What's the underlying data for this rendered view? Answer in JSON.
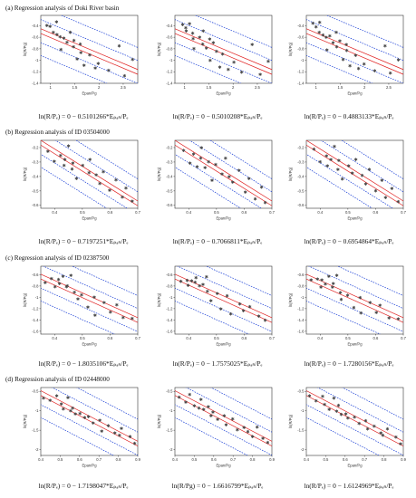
{
  "sections": [
    {
      "label": "(a) Regression analysis of Doki River basin",
      "xlabel": "Epan/Pg",
      "ylabel": "ln(R/Pg)",
      "xticks": [
        "1",
        "1.5",
        "2",
        "2.5"
      ],
      "xlim": [
        0.8,
        2.8
      ],
      "panels": [
        {
          "equation": "ln(R/Pₑ) = 0 − 0.5101266*Eₚₐₙ/Pₑ",
          "yticks": [
            "-0.4",
            "-0.6",
            "-0.8",
            "-1",
            "-1.2",
            "-1.4"
          ],
          "ylim": [
            -1.4,
            -0.22
          ],
          "slope": -0.5101266,
          "intercept": 0
        },
        {
          "equation": "ln(R/Pₑ) = 0 − 0.5010208*Eₚₐₙ/Pₑ",
          "yticks": [
            "-0.4",
            "-0.6",
            "-0.8",
            "-1",
            "-1.2",
            "-1.4"
          ],
          "ylim": [
            -1.4,
            -0.22
          ],
          "slope": -0.5010208,
          "intercept": 0
        },
        {
          "equation": "ln(R/Pₑ) = 0 − 0.4883133*Eₚₐₙ/Pₑ",
          "yticks": [
            "-0.4",
            "-0.6",
            "-0.8",
            "-1",
            "-1.2",
            "-1.4"
          ],
          "ylim": [
            -1.4,
            -0.22
          ],
          "slope": -0.4883133,
          "intercept": 0
        }
      ]
    },
    {
      "label": "(b) Regression analysis of ID 03504000",
      "xlabel": "Epan/Pg",
      "ylabel": "ln(R/Pg)",
      "xticks": [
        "0.4",
        "0.5",
        "0.6",
        "0.7"
      ],
      "xlim": [
        0.35,
        0.7
      ],
      "panels": [
        {
          "equation": "ln(R/Pₑ) = 0 − 0.7197251*Eₚₐₙ/Pₑ",
          "yticks": [
            "-0.2",
            "-0.3",
            "-0.4",
            "-0.5",
            "-0.6"
          ],
          "ylim": [
            -0.62,
            -0.15
          ],
          "slope": -0.7197251,
          "intercept": 0
        },
        {
          "equation": "ln(R/Pₑ) = 0 − 0.7066811*Eₚₐₙ/Pₑ",
          "yticks": [
            "-0.2",
            "-0.3",
            "-0.4",
            "-0.5",
            "-0.6"
          ],
          "ylim": [
            -0.62,
            -0.15
          ],
          "slope": -0.7066811,
          "intercept": 0
        },
        {
          "equation": "ln(R/Pₑ) = 0 − 0.6954864*Eₚₐₙ/Pₑ",
          "yticks": [
            "-0.2",
            "-0.3",
            "-0.4",
            "-0.5",
            "-0.6"
          ],
          "ylim": [
            -0.62,
            -0.15
          ],
          "slope": -0.6954864,
          "intercept": 0
        }
      ]
    },
    {
      "label": "(c) Regression analysis of ID 02387500",
      "xlabel": "Epan/Pg",
      "ylabel": "ln(R/Pg)",
      "xticks": [
        "0.4",
        "0.5",
        "0.6",
        "0.7"
      ],
      "xlim": [
        0.35,
        0.7
      ],
      "panels": [
        {
          "equation": "ln(R/Pₑ) = 0 − 1.8035106*Eₚₐₙ/Pₑ",
          "yticks": [
            "-0.6",
            "-0.8",
            "-1",
            "-1.2",
            "-1.4",
            "-1.6"
          ],
          "ylim": [
            -1.65,
            -0.45
          ],
          "slope": -1.8035106,
          "intercept": 0
        },
        {
          "equation": "ln(R/Pₑ) = 0 − 1.7575025*Eₚₐₙ/Pₑ",
          "yticks": [
            "-0.6",
            "-0.8",
            "-1",
            "-1.2",
            "-1.4",
            "-1.6"
          ],
          "ylim": [
            -1.65,
            -0.45
          ],
          "slope": -1.7575025,
          "intercept": 0
        },
        {
          "equation": "ln(R/Pₑ) = 0 − 1.7280156*Eₚₐₙ/Pₑ",
          "yticks": [
            "-0.6",
            "-0.8",
            "-1",
            "-1.2",
            "-1.4",
            "-1.6"
          ],
          "ylim": [
            -1.65,
            -0.45
          ],
          "slope": -1.7280156,
          "intercept": 0
        }
      ]
    },
    {
      "label": "(d) Regression analysis of ID 02448000",
      "xlabel": "Epan/Pg",
      "ylabel": "ln(R/Pg)",
      "xticks": [
        "0.4",
        "0.5",
        "0.6",
        "0.7",
        "0.8",
        "0.9"
      ],
      "xlim": [
        0.4,
        0.9
      ],
      "panels": [
        {
          "equation": "ln(R/Pₑ) = 0 − 1.7198047*Eₚₐₙ/Pₑ",
          "yticks": [
            "-0.5",
            "-1",
            "-1.5",
            "-2"
          ],
          "ylim": [
            -2.15,
            -0.4
          ],
          "slope": -1.7198047,
          "intercept": 0
        },
        {
          "equation": "ln(R/Pg) = 0 − 1.6616799*Eₚₐₙ/Pₑ",
          "yticks": [
            "-0.5",
            "-1",
            "-1.5",
            "-2"
          ],
          "ylim": [
            -2.15,
            -0.4
          ],
          "slope": -1.6616799,
          "intercept": 0
        },
        {
          "equation": "ln(R/Pₑ) = 0 − 1.6124969*Eₚₐₙ/Pₑ",
          "yticks": [
            "-0.5",
            "-1",
            "-1.5",
            "-2"
          ],
          "ylim": [
            -2.15,
            -0.4
          ],
          "slope": -1.6124969,
          "intercept": 0
        }
      ]
    }
  ],
  "colors": {
    "fit": "#e02020",
    "band": "#1a3fd6",
    "points": "#444444",
    "axis": "#333333"
  },
  "chart_data": [
    {
      "type": "scatter",
      "title": "(a) Regression analysis of Doki River basin",
      "xlabel": "Epan/Pg",
      "ylabel": "ln(R/Pg)",
      "xlim": [
        0.8,
        2.8
      ],
      "ylim": [
        -1.4,
        -0.22
      ],
      "points": [
        [
          0.95,
          -0.38
        ],
        [
          1.0,
          -0.42
        ],
        [
          1.05,
          -0.5
        ],
        [
          1.1,
          -0.35
        ],
        [
          1.15,
          -0.55
        ],
        [
          1.2,
          -0.62
        ],
        [
          1.2,
          -0.82
        ],
        [
          1.3,
          -0.6
        ],
        [
          1.35,
          -0.7
        ],
        [
          1.4,
          -0.5
        ],
        [
          1.45,
          -0.78
        ],
        [
          1.5,
          -0.65
        ],
        [
          1.55,
          -1.0
        ],
        [
          1.6,
          -0.72
        ],
        [
          1.65,
          -0.85
        ],
        [
          1.7,
          -1.1
        ],
        [
          1.8,
          -0.9
        ],
        [
          1.9,
          -1.15
        ],
        [
          2.0,
          -1.05
        ],
        [
          2.2,
          -1.2
        ],
        [
          2.4,
          -0.75
        ],
        [
          2.55,
          -1.25
        ],
        [
          2.7,
          -1.0
        ]
      ]
    },
    {
      "type": "scatter",
      "title": "(b) Regression analysis of ID 03504000",
      "xlabel": "Epan/Pg",
      "ylabel": "ln(R/Pg)",
      "xlim": [
        0.35,
        0.7
      ],
      "ylim": [
        -0.62,
        -0.15
      ],
      "points": [
        [
          0.38,
          -0.22
        ],
        [
          0.4,
          -0.3
        ],
        [
          0.42,
          -0.25
        ],
        [
          0.43,
          -0.33
        ],
        [
          0.44,
          -0.28
        ],
        [
          0.45,
          -0.2
        ],
        [
          0.46,
          -0.35
        ],
        [
          0.47,
          -0.3
        ],
        [
          0.48,
          -0.42
        ],
        [
          0.5,
          -0.32
        ],
        [
          0.52,
          -0.38
        ],
        [
          0.53,
          -0.28
        ],
        [
          0.55,
          -0.4
        ],
        [
          0.56,
          -0.45
        ],
        [
          0.58,
          -0.36
        ],
        [
          0.6,
          -0.5
        ],
        [
          0.62,
          -0.42
        ],
        [
          0.64,
          -0.55
        ],
        [
          0.66,
          -0.48
        ],
        [
          0.68,
          -0.58
        ]
      ]
    },
    {
      "type": "scatter",
      "title": "(c) Regression analysis of ID 02387500",
      "xlabel": "Epan/Pg",
      "ylabel": "ln(R/Pg)",
      "xlim": [
        0.35,
        0.7
      ],
      "ylim": [
        -1.65,
        -0.45
      ],
      "points": [
        [
          0.37,
          -0.72
        ],
        [
          0.39,
          -0.68
        ],
        [
          0.4,
          -0.8
        ],
        [
          0.41,
          -0.7
        ],
        [
          0.42,
          -0.75
        ],
        [
          0.43,
          -0.65
        ],
        [
          0.44,
          -0.82
        ],
        [
          0.45,
          -0.78
        ],
        [
          0.46,
          -0.62
        ],
        [
          0.47,
          -0.9
        ],
        [
          0.48,
          -1.05
        ],
        [
          0.5,
          -0.95
        ],
        [
          0.52,
          -1.2
        ],
        [
          0.54,
          -1.0
        ],
        [
          0.55,
          -1.3
        ],
        [
          0.58,
          -1.1
        ],
        [
          0.6,
          -1.25
        ],
        [
          0.62,
          -1.15
        ],
        [
          0.65,
          -1.35
        ],
        [
          0.68,
          -1.4
        ]
      ]
    },
    {
      "type": "scatter",
      "title": "(d) Regression analysis of ID 02448000",
      "xlabel": "Epan/Pg",
      "ylabel": "ln(R/Pg)",
      "xlim": [
        0.4,
        0.9
      ],
      "ylim": [
        -2.15,
        -0.4
      ],
      "points": [
        [
          0.42,
          -0.65
        ],
        [
          0.45,
          -0.75
        ],
        [
          0.48,
          -0.6
        ],
        [
          0.5,
          -0.85
        ],
        [
          0.52,
          -0.95
        ],
        [
          0.54,
          -0.7
        ],
        [
          0.55,
          -1.0
        ],
        [
          0.57,
          -0.9
        ],
        [
          0.58,
          -1.1
        ],
        [
          0.6,
          -1.05
        ],
        [
          0.62,
          -1.2
        ],
        [
          0.65,
          -1.15
        ],
        [
          0.67,
          -1.35
        ],
        [
          0.7,
          -1.25
        ],
        [
          0.72,
          -1.5
        ],
        [
          0.75,
          -1.4
        ],
        [
          0.78,
          -1.55
        ],
        [
          0.8,
          -1.65
        ],
        [
          0.82,
          -1.45
        ],
        [
          0.86,
          -1.7
        ],
        [
          0.88,
          -1.85
        ]
      ]
    }
  ]
}
